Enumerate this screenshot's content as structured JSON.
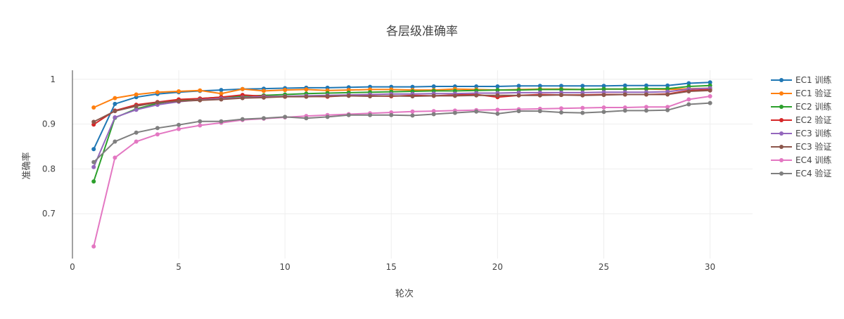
{
  "chart_data": {
    "type": "line",
    "title": "各层级准确率",
    "xlabel": "轮次",
    "ylabel": "准确率",
    "xlim": [
      0,
      32
    ],
    "ylim": [
      0.6,
      1.02
    ],
    "x_ticks": [
      0,
      5,
      10,
      15,
      20,
      25,
      30
    ],
    "y_ticks": [
      0.7,
      0.8,
      0.9,
      1
    ],
    "grid": true,
    "legend_position": "right",
    "x": [
      1,
      2,
      3,
      4,
      5,
      6,
      7,
      8,
      9,
      10,
      11,
      12,
      13,
      14,
      15,
      16,
      17,
      18,
      19,
      20,
      21,
      22,
      23,
      24,
      25,
      26,
      27,
      28,
      29,
      30
    ],
    "series": [
      {
        "name": "EC1 训练",
        "color": "#1f77b4",
        "values": [
          0.844,
          0.945,
          0.96,
          0.967,
          0.971,
          0.974,
          0.976,
          0.978,
          0.979,
          0.98,
          0.981,
          0.981,
          0.982,
          0.983,
          0.983,
          0.983,
          0.984,
          0.984,
          0.984,
          0.984,
          0.985,
          0.985,
          0.985,
          0.985,
          0.985,
          0.986,
          0.986,
          0.986,
          0.991,
          0.993
        ]
      },
      {
        "name": "EC1 验证",
        "color": "#ff7f0e",
        "values": [
          0.937,
          0.958,
          0.966,
          0.971,
          0.973,
          0.975,
          0.968,
          0.978,
          0.974,
          0.976,
          0.977,
          0.975,
          0.976,
          0.977,
          0.977,
          0.976,
          0.976,
          0.978,
          0.977,
          0.976,
          0.977,
          0.978,
          0.978,
          0.977,
          0.978,
          0.978,
          0.978,
          0.977,
          0.979,
          0.98
        ]
      },
      {
        "name": "EC2 训练",
        "color": "#2ca02c",
        "values": [
          0.772,
          0.914,
          0.934,
          0.946,
          0.953,
          0.957,
          0.96,
          0.962,
          0.964,
          0.966,
          0.968,
          0.969,
          0.97,
          0.971,
          0.972,
          0.973,
          0.974,
          0.974,
          0.975,
          0.976,
          0.976,
          0.977,
          0.977,
          0.977,
          0.978,
          0.978,
          0.979,
          0.979,
          0.984,
          0.986
        ]
      },
      {
        "name": "EC2 验证",
        "color": "#d62728",
        "values": [
          0.899,
          0.93,
          0.943,
          0.949,
          0.955,
          0.957,
          0.96,
          0.965,
          0.962,
          0.961,
          0.962,
          0.961,
          0.964,
          0.963,
          0.962,
          0.964,
          0.963,
          0.965,
          0.966,
          0.96,
          0.964,
          0.966,
          0.965,
          0.965,
          0.966,
          0.966,
          0.966,
          0.967,
          0.975,
          0.977
        ]
      },
      {
        "name": "EC3 训练",
        "color": "#9467bd",
        "values": [
          0.804,
          0.915,
          0.932,
          0.943,
          0.95,
          0.954,
          0.957,
          0.959,
          0.961,
          0.962,
          0.963,
          0.964,
          0.965,
          0.966,
          0.967,
          0.967,
          0.968,
          0.968,
          0.969,
          0.969,
          0.97,
          0.97,
          0.97,
          0.97,
          0.971,
          0.971,
          0.971,
          0.972,
          0.978,
          0.98
        ]
      },
      {
        "name": "EC3 验证",
        "color": "#8c564b",
        "values": [
          0.905,
          0.929,
          0.94,
          0.948,
          0.951,
          0.953,
          0.955,
          0.958,
          0.959,
          0.961,
          0.961,
          0.962,
          0.963,
          0.962,
          0.963,
          0.962,
          0.963,
          0.963,
          0.964,
          0.964,
          0.964,
          0.964,
          0.965,
          0.964,
          0.965,
          0.966,
          0.966,
          0.966,
          0.973,
          0.975
        ]
      },
      {
        "name": "EC4 训练",
        "color": "#e377c2",
        "values": [
          0.627,
          0.825,
          0.861,
          0.877,
          0.889,
          0.897,
          0.903,
          0.909,
          0.912,
          0.915,
          0.918,
          0.92,
          0.922,
          0.924,
          0.926,
          0.928,
          0.929,
          0.93,
          0.931,
          0.932,
          0.933,
          0.934,
          0.935,
          0.936,
          0.937,
          0.937,
          0.938,
          0.938,
          0.955,
          0.962
        ]
      },
      {
        "name": "EC4 验证",
        "color": "#7f7f7f",
        "values": [
          0.815,
          0.861,
          0.881,
          0.891,
          0.898,
          0.906,
          0.906,
          0.911,
          0.913,
          0.916,
          0.913,
          0.916,
          0.92,
          0.92,
          0.92,
          0.919,
          0.922,
          0.925,
          0.928,
          0.923,
          0.929,
          0.929,
          0.926,
          0.925,
          0.927,
          0.93,
          0.93,
          0.931,
          0.944,
          0.947
        ]
      }
    ]
  }
}
